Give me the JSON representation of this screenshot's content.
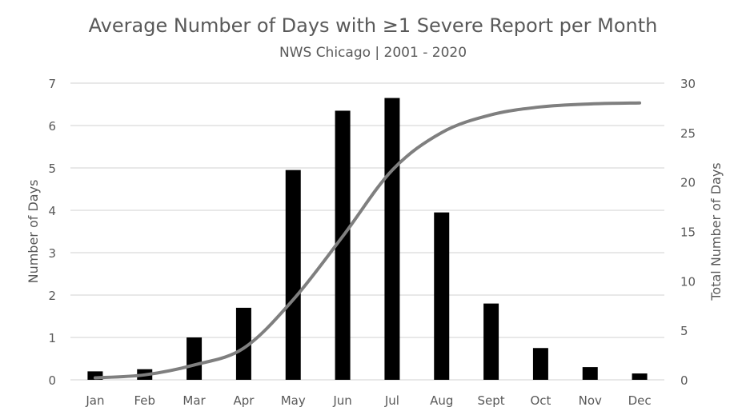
{
  "chart_data": {
    "type": "bar",
    "title": "Average Number of Days with ≥1 Severe Report per Month",
    "subtitle": "NWS Chicago | 2001 - 2020",
    "categories": [
      "Jan",
      "Feb",
      "Mar",
      "Apr",
      "May",
      "Jun",
      "Jul",
      "Aug",
      "Sept",
      "Oct",
      "Nov",
      "Dec"
    ],
    "ylabel": "Number of Days",
    "y2label": "Total Number of Days",
    "ylim": [
      0,
      7
    ],
    "y2lim": [
      0,
      30
    ],
    "yticks": [
      "0",
      "1",
      "2",
      "3",
      "4",
      "5",
      "6",
      "7"
    ],
    "y2ticks": [
      "0",
      "5",
      "10",
      "15",
      "20",
      "25",
      "30"
    ],
    "grid": true,
    "series": [
      {
        "type": "bar",
        "axis": "left",
        "color": "#000000",
        "values": [
          0.2,
          0.25,
          1.0,
          1.7,
          4.95,
          6.35,
          6.65,
          3.95,
          1.8,
          0.75,
          0.3,
          0.15
        ]
      },
      {
        "type": "line",
        "axis": "right",
        "color": "#7f7f7f",
        "values": [
          0.2,
          0.5,
          1.5,
          3.2,
          8.1,
          14.5,
          21.2,
          25.0,
          26.8,
          27.6,
          27.9,
          28.0
        ]
      }
    ]
  }
}
